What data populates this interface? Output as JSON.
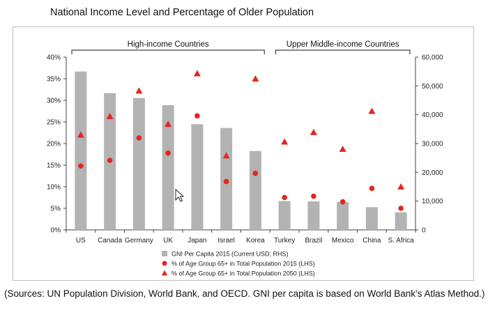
{
  "title": "National Income Level and Percentage of Older Population",
  "source": "(Sources: UN Population Division, World Bank, and OECD. GNI per capita is based on World Bank's Atlas Method.)",
  "colors": {
    "bar": "#b3b3b3",
    "marker": "#e52521",
    "axis": "#404040"
  },
  "icons": {
    "cursor": "mouse-pointer-icon"
  },
  "chart_data": {
    "type": "bar",
    "categories": [
      "US",
      "Canada",
      "Germany",
      "UK",
      "Japan",
      "Israel",
      "Korea",
      "Turkey",
      "Brazil",
      "Mexico",
      "China",
      "S. Africa"
    ],
    "groups": [
      {
        "label": "High-income Countries",
        "from": 0,
        "to": 6
      },
      {
        "label": "Upper Middle-income Countries",
        "from": 7,
        "to": 11
      }
    ],
    "series": [
      {
        "name": "GNI Per Capita 2015 (Current USD; RHS)",
        "kind": "bar",
        "axis": "right",
        "values": [
          55000,
          47500,
          45800,
          43300,
          36700,
          35400,
          27400,
          10000,
          9900,
          9700,
          7900,
          6100
        ]
      },
      {
        "name": "% of Age Group 65+ in Total Population 2015 (LHS)",
        "kind": "circle",
        "axis": "left",
        "values": [
          14.8,
          16.1,
          21.3,
          17.8,
          26.4,
          11.2,
          13.1,
          7.5,
          7.8,
          6.5,
          9.6,
          5.0
        ]
      },
      {
        "name": "% of Age Group 65+ in Total Population 2050 (LHS)",
        "kind": "triangle",
        "axis": "left",
        "values": [
          22.0,
          26.3,
          32.2,
          24.5,
          36.2,
          17.2,
          35.0,
          20.4,
          22.6,
          18.7,
          27.5,
          10.0
        ]
      }
    ],
    "y_left": {
      "min": 0,
      "max": 40,
      "step": 5,
      "suffix": "%",
      "ticks": [
        "0%",
        "5%",
        "10%",
        "15%",
        "20%",
        "25%",
        "30%",
        "35%",
        "40%"
      ]
    },
    "y_right": {
      "min": 0,
      "max": 60000,
      "step": 10000,
      "ticks": [
        "0",
        "10,000",
        "20,000",
        "30,000",
        "40,000",
        "50,000",
        "60,000"
      ]
    },
    "grid": false,
    "legend_position": "bottom"
  }
}
